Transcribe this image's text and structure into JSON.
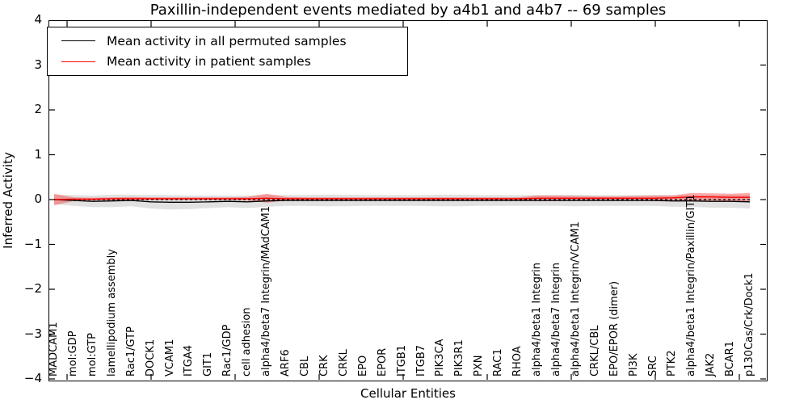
{
  "chart_data": {
    "type": "line",
    "title": "Paxillin-independent events mediated by a4b1 and a4b7 -- 69 samples",
    "xlabel": "Cellular Entities",
    "ylabel": "Inferred Activity",
    "ylim": [
      -4,
      4
    ],
    "yticks": [
      4,
      3,
      2,
      1,
      0,
      -1,
      -2,
      -3,
      -4
    ],
    "grid": false,
    "legend_position": "upper left",
    "zero_reference_line": {
      "y": 0,
      "style": "dashed",
      "color": "#000000"
    },
    "categories": [
      "MADCAM1",
      "mol:GDP",
      "mol:GTP",
      "lamellipodium assembly",
      "Rac1/GTP",
      "DOCK1",
      "VCAM1",
      "ITGA4",
      "GIT1",
      "Rac1/GDP",
      "cell adhesion",
      "alpha4/beta7 Integrin/MAdCAM1",
      "ARF6",
      "CBL",
      "CRK",
      "CRKL",
      "EPO",
      "EPOR",
      "ITGB1",
      "ITGB7",
      "PIK3CA",
      "PIK3R1",
      "PXN",
      "RAC1",
      "RHOA",
      "alpha4/beta1 Integrin",
      "alpha4/beta7 Integrin",
      "alpha4/beta1 Integrin/VCAM1",
      "CRKL/CBL",
      "EPO/EPOR (dimer)",
      "PI3K",
      "SRC",
      "PTK2",
      "alpha4/beta1 Integrin/Paxillin/GIT1",
      "JAK2",
      "BCAR1",
      "p130Cas/Crk/Dock1"
    ],
    "series": [
      {
        "name": "Mean activity in all permuted samples",
        "color": "#000000",
        "band_color": "rgba(90,90,90,0.18)",
        "values": [
          0.0,
          -0.02,
          -0.04,
          -0.03,
          -0.02,
          -0.05,
          -0.06,
          -0.06,
          -0.05,
          -0.04,
          -0.05,
          -0.03,
          -0.02,
          -0.02,
          -0.02,
          -0.02,
          -0.02,
          -0.02,
          -0.02,
          -0.02,
          -0.02,
          -0.02,
          -0.02,
          -0.02,
          -0.02,
          -0.02,
          -0.02,
          -0.02,
          -0.02,
          -0.02,
          -0.02,
          -0.02,
          -0.03,
          -0.03,
          -0.04,
          -0.04,
          -0.05
        ],
        "band_halfwidth": [
          0.1,
          0.12,
          0.13,
          0.14,
          0.13,
          0.15,
          0.16,
          0.15,
          0.14,
          0.13,
          0.14,
          0.13,
          0.12,
          0.12,
          0.13,
          0.13,
          0.12,
          0.12,
          0.12,
          0.12,
          0.13,
          0.13,
          0.12,
          0.12,
          0.12,
          0.12,
          0.12,
          0.13,
          0.12,
          0.12,
          0.12,
          0.12,
          0.13,
          0.13,
          0.14,
          0.14,
          0.15
        ]
      },
      {
        "name": "Mean activity in patient samples",
        "color": "#ff0000",
        "band_color": "rgba(255,0,0,0.33)",
        "values": [
          0.0,
          0.01,
          0.01,
          0.02,
          0.02,
          0.02,
          0.02,
          0.02,
          0.02,
          0.02,
          0.02,
          0.03,
          0.02,
          0.02,
          0.02,
          0.02,
          0.02,
          0.02,
          0.02,
          0.02,
          0.02,
          0.02,
          0.02,
          0.02,
          0.02,
          0.03,
          0.03,
          0.03,
          0.03,
          0.03,
          0.03,
          0.03,
          0.04,
          0.06,
          0.06,
          0.05,
          0.05
        ],
        "band_halfwidth": [
          0.13,
          0.04,
          0.03,
          0.03,
          0.04,
          0.03,
          0.03,
          0.03,
          0.03,
          0.03,
          0.04,
          0.1,
          0.04,
          0.03,
          0.03,
          0.03,
          0.03,
          0.03,
          0.03,
          0.03,
          0.03,
          0.03,
          0.03,
          0.03,
          0.03,
          0.06,
          0.06,
          0.05,
          0.04,
          0.04,
          0.05,
          0.06,
          0.05,
          0.09,
          0.08,
          0.08,
          0.1
        ]
      }
    ]
  }
}
